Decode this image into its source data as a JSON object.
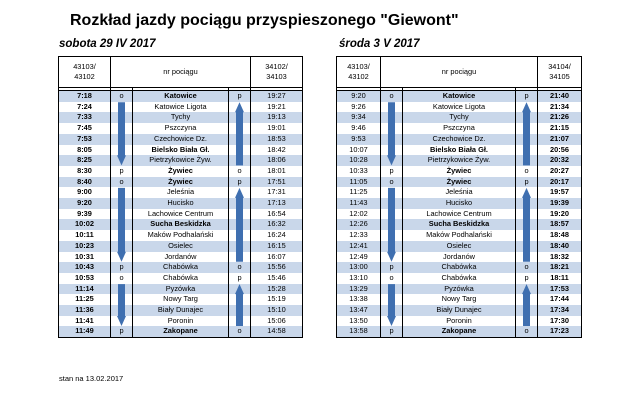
{
  "title": "Rozkład jazdy pociągu przyspieszonego \"Giewont\"",
  "footer": "stan na 13.02.2017",
  "colors": {
    "band": "#c9d7ea",
    "arrow": "#3f6fb0"
  },
  "tables": [
    {
      "subtitle": "sobota 29 IV 2017",
      "header": {
        "left": [
          "43103/",
          "43102"
        ],
        "middle": "nr pociągu",
        "right": [
          "34102/",
          "34103"
        ]
      },
      "rows": [
        {
          "tl": "7:18",
          "pl": "o",
          "station": "Katowice",
          "pr": "p",
          "tr": "19:27",
          "bold": true
        },
        {
          "tl": "7:24",
          "pl": "",
          "station": "Katowice Ligota",
          "pr": "",
          "tr": "19:21"
        },
        {
          "tl": "7:33",
          "pl": "",
          "station": "Tychy",
          "pr": "",
          "tr": "19:13"
        },
        {
          "tl": "7:45",
          "pl": "",
          "station": "Pszczyna",
          "pr": "",
          "tr": "19:01"
        },
        {
          "tl": "7:53",
          "pl": "",
          "station": "Czechowice Dz.",
          "pr": "",
          "tr": "18:53"
        },
        {
          "tl": "8:05",
          "pl": "",
          "station": "Bielsko Biała Gł.",
          "pr": "",
          "tr": "18:42",
          "bold": true
        },
        {
          "tl": "8:25",
          "pl": "",
          "station": "Pietrzykowice Żyw.",
          "pr": "",
          "tr": "18:06"
        },
        {
          "tl": "8:30",
          "pl": "p",
          "station": "Żywiec",
          "pr": "o",
          "tr": "18:01",
          "bold": true
        },
        {
          "tl": "8:40",
          "pl": "o",
          "station": "Żywiec",
          "pr": "p",
          "tr": "17:51",
          "bold": true
        },
        {
          "tl": "9:00",
          "pl": "",
          "station": "Jeleśnia",
          "pr": "",
          "tr": "17:31"
        },
        {
          "tl": "9:20",
          "pl": "",
          "station": "Hucisko",
          "pr": "",
          "tr": "17:13"
        },
        {
          "tl": "9:39",
          "pl": "",
          "station": "Lachowice Centrum",
          "pr": "",
          "tr": "16:54"
        },
        {
          "tl": "10:02",
          "pl": "",
          "station": "Sucha Beskidzka",
          "pr": "",
          "tr": "16:32",
          "bold": true
        },
        {
          "tl": "10:11",
          "pl": "",
          "station": "Maków Podhalański",
          "pr": "",
          "tr": "16:24"
        },
        {
          "tl": "10:23",
          "pl": "",
          "station": "Osielec",
          "pr": "",
          "tr": "16:15"
        },
        {
          "tl": "10:31",
          "pl": "",
          "station": "Jordanów",
          "pr": "",
          "tr": "16:07"
        },
        {
          "tl": "10:43",
          "pl": "p",
          "station": "Chabówka",
          "pr": "o",
          "tr": "15:56"
        },
        {
          "tl": "10:53",
          "pl": "o",
          "station": "Chabówka",
          "pr": "p",
          "tr": "15:46"
        },
        {
          "tl": "11:14",
          "pl": "",
          "station": "Pyzówka",
          "pr": "",
          "tr": "15:28"
        },
        {
          "tl": "11:25",
          "pl": "",
          "station": "Nowy Targ",
          "pr": "",
          "tr": "15:19"
        },
        {
          "tl": "11:36",
          "pl": "",
          "station": "Biały Dunajec",
          "pr": "",
          "tr": "15:10"
        },
        {
          "tl": "11:41",
          "pl": "",
          "station": "Poronin",
          "pr": "",
          "tr": "15:06"
        },
        {
          "tl": "11:49",
          "pl": "p",
          "station": "Zakopane",
          "pr": "o",
          "tr": "14:58",
          "bold": true
        }
      ]
    },
    {
      "subtitle": "środa 3 V 2017",
      "header": {
        "left": [
          "43103/",
          "43102"
        ],
        "middle": "nr pociągu",
        "right": [
          "34104/",
          "34105"
        ]
      },
      "rows": [
        {
          "tl": "9:20",
          "pl": "o",
          "station": "Katowice",
          "pr": "p",
          "tr": "21:40",
          "bold": true
        },
        {
          "tl": "9:26",
          "pl": "",
          "station": "Katowice Ligota",
          "pr": "",
          "tr": "21:34"
        },
        {
          "tl": "9:34",
          "pl": "",
          "station": "Tychy",
          "pr": "",
          "tr": "21:26"
        },
        {
          "tl": "9:46",
          "pl": "",
          "station": "Pszczyna",
          "pr": "",
          "tr": "21:15"
        },
        {
          "tl": "9:53",
          "pl": "",
          "station": "Czechowice Dz.",
          "pr": "",
          "tr": "21:07"
        },
        {
          "tl": "10:07",
          "pl": "",
          "station": "Bielsko Biała Gł.",
          "pr": "",
          "tr": "20:56",
          "bold": true
        },
        {
          "tl": "10:28",
          "pl": "",
          "station": "Pietrzykowice Żyw.",
          "pr": "",
          "tr": "20:32"
        },
        {
          "tl": "10:33",
          "pl": "p",
          "station": "Żywiec",
          "pr": "o",
          "tr": "20:27",
          "bold": true
        },
        {
          "tl": "11:05",
          "pl": "o",
          "station": "Żywiec",
          "pr": "p",
          "tr": "20:17",
          "bold": true
        },
        {
          "tl": "11:25",
          "pl": "",
          "station": "Jeleśnia",
          "pr": "",
          "tr": "19:57"
        },
        {
          "tl": "11:43",
          "pl": "",
          "station": "Hucisko",
          "pr": "",
          "tr": "19:39"
        },
        {
          "tl": "12:02",
          "pl": "",
          "station": "Lachowice Centrum",
          "pr": "",
          "tr": "19:20"
        },
        {
          "tl": "12:26",
          "pl": "",
          "station": "Sucha Beskidzka",
          "pr": "",
          "tr": "18:57",
          "bold": true
        },
        {
          "tl": "12:33",
          "pl": "",
          "station": "Maków Podhalański",
          "pr": "",
          "tr": "18:48"
        },
        {
          "tl": "12:41",
          "pl": "",
          "station": "Osielec",
          "pr": "",
          "tr": "18:40"
        },
        {
          "tl": "12:49",
          "pl": "",
          "station": "Jordanów",
          "pr": "",
          "tr": "18:32"
        },
        {
          "tl": "13:00",
          "pl": "p",
          "station": "Chabówka",
          "pr": "o",
          "tr": "18:21"
        },
        {
          "tl": "13:10",
          "pl": "o",
          "station": "Chabówka",
          "pr": "p",
          "tr": "18:11"
        },
        {
          "tl": "13:29",
          "pl": "",
          "station": "Pyzówka",
          "pr": "",
          "tr": "17:53"
        },
        {
          "tl": "13:38",
          "pl": "",
          "station": "Nowy Targ",
          "pr": "",
          "tr": "17:44"
        },
        {
          "tl": "13:47",
          "pl": "",
          "station": "Biały Dunajec",
          "pr": "",
          "tr": "17:34"
        },
        {
          "tl": "13:50",
          "pl": "",
          "station": "Poronin",
          "pr": "",
          "tr": "17:30"
        },
        {
          "tl": "13:58",
          "pl": "p",
          "station": "Zakopane",
          "pr": "o",
          "tr": "17:23",
          "bold": true
        }
      ]
    }
  ]
}
